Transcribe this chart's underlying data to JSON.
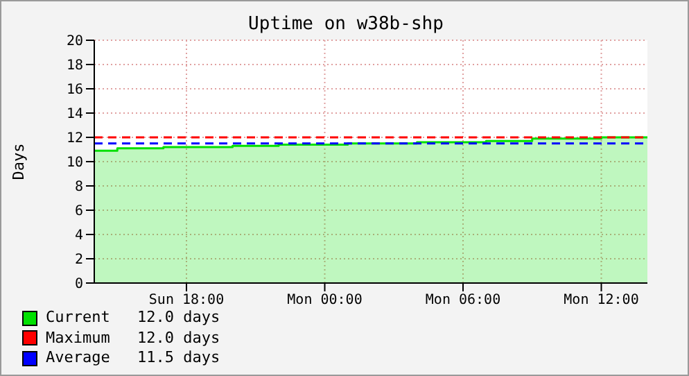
{
  "chart_data": {
    "type": "area",
    "title": "Uptime on w38b-shp",
    "ylabel": "Days",
    "categories": [
      null,
      null,
      null,
      null,
      "Sun 18:00",
      null,
      null,
      null,
      null,
      null,
      "Mon 00:00",
      null,
      null,
      null,
      null,
      null,
      "Mon 06:00",
      null,
      null,
      null,
      null,
      null,
      "Mon 12:00",
      null,
      null
    ],
    "ylim": [
      0,
      20
    ],
    "yticks": [
      0,
      2,
      4,
      6,
      8,
      10,
      12,
      14,
      16,
      18,
      20
    ],
    "grid": true,
    "legend": "bottom",
    "series": [
      {
        "name": "Current",
        "color": "#00e000",
        "values": [
          10.9,
          11.1,
          11.1,
          11.2,
          11.2,
          11.2,
          11.3,
          11.3,
          11.4,
          11.4,
          11.4,
          11.5,
          11.5,
          11.5,
          11.6,
          11.6,
          11.6,
          11.7,
          11.7,
          11.9,
          11.9,
          11.9,
          12.0,
          12.0,
          12.0
        ]
      },
      {
        "name": "Maximum",
        "type": "line",
        "line_style": "dashed",
        "color": "#ff0000",
        "values": [
          12,
          12,
          12,
          12,
          12,
          12,
          12,
          12,
          12,
          12,
          12,
          12,
          12,
          12,
          12,
          12,
          12,
          12,
          12,
          12,
          12,
          12,
          12,
          12,
          12
        ]
      },
      {
        "name": "Average",
        "type": "line",
        "line_style": "dashed",
        "color": "#0000ff",
        "values": [
          11.5,
          11.5,
          11.5,
          11.5,
          11.5,
          11.5,
          11.5,
          11.5,
          11.5,
          11.5,
          11.5,
          11.5,
          11.5,
          11.5,
          11.5,
          11.5,
          11.5,
          11.5,
          11.5,
          11.5,
          11.5,
          11.5,
          11.5,
          11.5,
          11.5
        ]
      }
    ],
    "annotations": [
      "12.0 days",
      "12.0 days",
      "11.5 days"
    ]
  }
}
